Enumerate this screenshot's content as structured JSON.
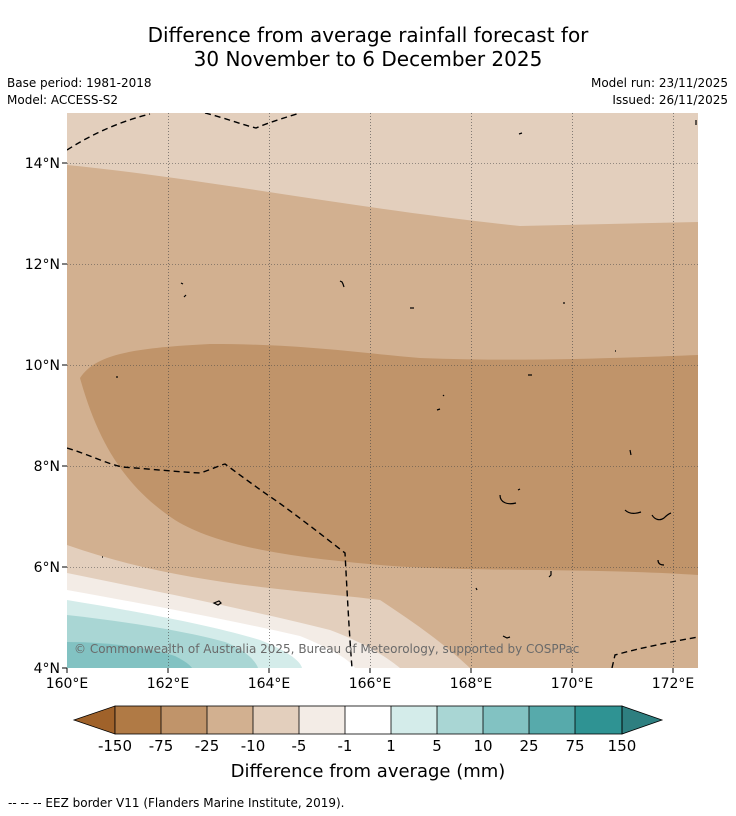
{
  "title": {
    "line1": "Difference from average rainfall forecast for",
    "line2": "30 November to 6 December 2025"
  },
  "meta": {
    "base_period": "Base period: 1981-2018",
    "model": "Model: ACCESS-S2",
    "model_run": "Model run: 23/11/2025",
    "issued": "Issued: 26/11/2025"
  },
  "map": {
    "lon_range": [
      160,
      172.5
    ],
    "lat_range": [
      4,
      15
    ],
    "lon_ticks": [
      "160°E",
      "162°E",
      "164°E",
      "166°E",
      "168°E",
      "170°E",
      "172°E"
    ],
    "lat_ticks": [
      "4°N",
      "6°N",
      "8°N",
      "10°N",
      "12°N",
      "14°N"
    ],
    "copyright": "© Commonwealth of Australia 2025, Bureau of Meteorology, supported by COSPPac",
    "gridlines": "dotted"
  },
  "legend": {
    "labels": [
      "-150",
      "-75",
      "-25",
      "-10",
      "-5",
      "-1",
      "1",
      "5",
      "10",
      "25",
      "75",
      "150"
    ],
    "colors": [
      "#a0622a",
      "#b07a45",
      "#c0946a",
      "#d2b090",
      "#e3cfbd",
      "#f3ece6",
      "#ffffff",
      "#d4ecea",
      "#a9d6d4",
      "#82c2c2",
      "#57aaab",
      "#2f9393",
      "#2e7f80"
    ],
    "caption": "Difference from average (mm)"
  },
  "footnote": "--  --  -- EEZ border V11 (Flanders Marine Institute, 2019)."
}
